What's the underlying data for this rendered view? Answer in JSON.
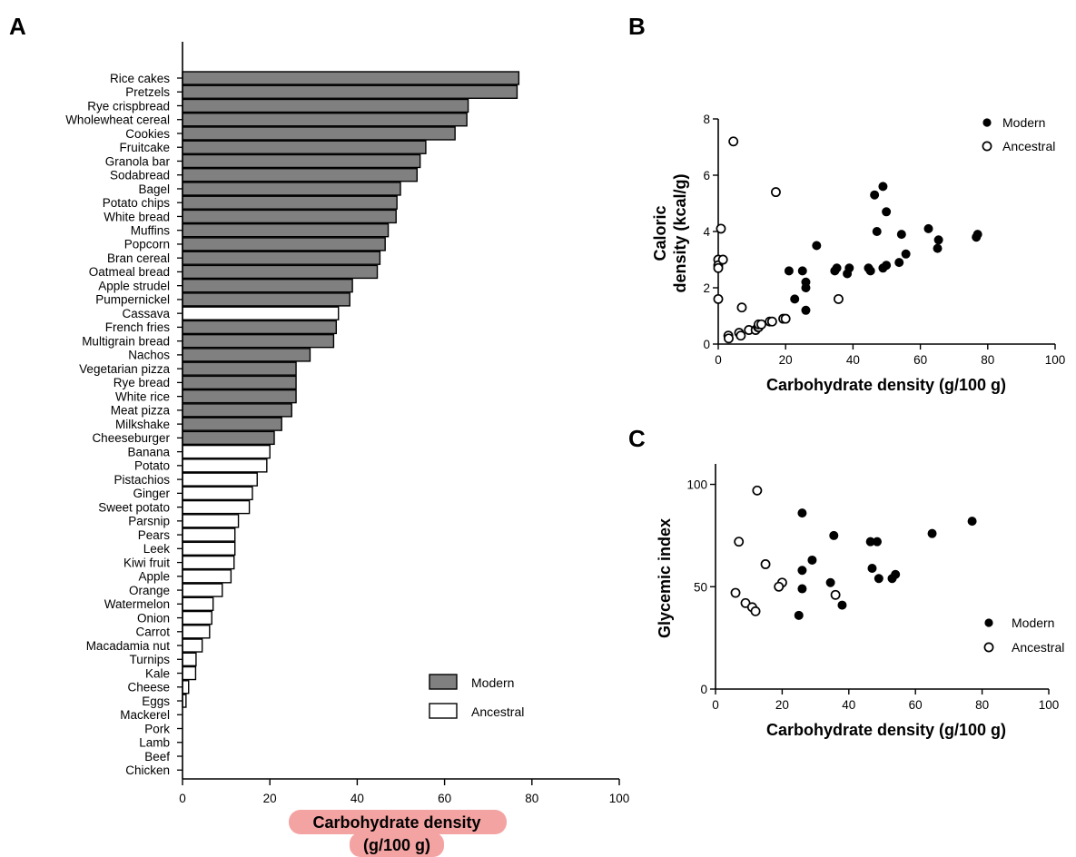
{
  "colors": {
    "modern": "#808080",
    "ancestral": "#ffffff",
    "highlight": "#f4a3a3",
    "stroke": "#000000"
  },
  "panels": {
    "a": "A",
    "b": "B",
    "c": "C"
  },
  "chart_data": [
    {
      "panel": "A",
      "type": "bar",
      "orientation": "horizontal",
      "xlabel_line1": "Carbohydrate density",
      "xlabel_line2": "(g/100 g)",
      "xlim": [
        0,
        100
      ],
      "xticks": [
        "0",
        "20",
        "40",
        "60",
        "80",
        "100"
      ],
      "legend": [
        {
          "name": "Modern",
          "group": "modern"
        },
        {
          "name": "Ancestral",
          "group": "ancestral"
        }
      ],
      "legend_position": "bottom-right",
      "bars": [
        {
          "label": "Rice cakes",
          "value": 77,
          "group": "modern"
        },
        {
          "label": "Pretzels",
          "value": 76.6,
          "group": "modern"
        },
        {
          "label": "Rye crispbread",
          "value": 65.4,
          "group": "modern"
        },
        {
          "label": "Wholewheat cereal",
          "value": 65.1,
          "group": "modern"
        },
        {
          "label": "Cookies",
          "value": 62.4,
          "group": "modern"
        },
        {
          "label": "Fruitcake",
          "value": 55.7,
          "group": "modern"
        },
        {
          "label": "Granola bar",
          "value": 54.4,
          "group": "modern"
        },
        {
          "label": "Sodabread",
          "value": 53.7,
          "group": "modern"
        },
        {
          "label": "Bagel",
          "value": 49.9,
          "group": "modern"
        },
        {
          "label": "Potato chips",
          "value": 49.1,
          "group": "modern"
        },
        {
          "label": "White bread",
          "value": 48.9,
          "group": "modern"
        },
        {
          "label": "Muffins",
          "value": 47.1,
          "group": "modern"
        },
        {
          "label": "Popcorn",
          "value": 46.4,
          "group": "modern"
        },
        {
          "label": "Bran cereal",
          "value": 45.2,
          "group": "modern"
        },
        {
          "label": "Oatmeal bread",
          "value": 44.6,
          "group": "modern"
        },
        {
          "label": "Apple strudel",
          "value": 38.9,
          "group": "modern"
        },
        {
          "label": "Pumpernickel",
          "value": 38.3,
          "group": "modern"
        },
        {
          "label": "Cassava",
          "value": 35.7,
          "group": "ancestral"
        },
        {
          "label": "French fries",
          "value": 35.2,
          "group": "modern"
        },
        {
          "label": "Multigrain bread",
          "value": 34.6,
          "group": "modern"
        },
        {
          "label": "Nachos",
          "value": 29.2,
          "group": "modern"
        },
        {
          "label": "Vegetarian pizza",
          "value": 26,
          "group": "modern"
        },
        {
          "label": "Rye bread",
          "value": 26,
          "group": "modern"
        },
        {
          "label": "White rice",
          "value": 26,
          "group": "modern"
        },
        {
          "label": "Meat pizza",
          "value": 25,
          "group": "modern"
        },
        {
          "label": "Milkshake",
          "value": 22.7,
          "group": "modern"
        },
        {
          "label": "Cheeseburger",
          "value": 21,
          "group": "modern"
        },
        {
          "label": "Banana",
          "value": 20,
          "group": "ancestral"
        },
        {
          "label": "Potato",
          "value": 19.3,
          "group": "ancestral"
        },
        {
          "label": "Pistachios",
          "value": 17.1,
          "group": "ancestral"
        },
        {
          "label": "Ginger",
          "value": 16,
          "group": "ancestral"
        },
        {
          "label": "Sweet potato",
          "value": 15.3,
          "group": "ancestral"
        },
        {
          "label": "Parsnip",
          "value": 12.8,
          "group": "ancestral"
        },
        {
          "label": "Pears",
          "value": 12,
          "group": "ancestral"
        },
        {
          "label": "Leek",
          "value": 12,
          "group": "ancestral"
        },
        {
          "label": "Kiwi fruit",
          "value": 11.8,
          "group": "ancestral"
        },
        {
          "label": "Apple",
          "value": 11.1,
          "group": "ancestral"
        },
        {
          "label": "Orange",
          "value": 9.1,
          "group": "ancestral"
        },
        {
          "label": "Watermelon",
          "value": 7,
          "group": "ancestral"
        },
        {
          "label": "Onion",
          "value": 6.7,
          "group": "ancestral"
        },
        {
          "label": "Carrot",
          "value": 6.2,
          "group": "ancestral"
        },
        {
          "label": "Macadamia nut",
          "value": 4.5,
          "group": "ancestral"
        },
        {
          "label": "Turnips",
          "value": 3.1,
          "group": "ancestral"
        },
        {
          "label": "Kale",
          "value": 3,
          "group": "ancestral"
        },
        {
          "label": "Cheese",
          "value": 1.4,
          "group": "ancestral"
        },
        {
          "label": "Eggs",
          "value": 0.8,
          "group": "ancestral"
        },
        {
          "label": "Mackerel",
          "value": 0,
          "group": "ancestral"
        },
        {
          "label": "Pork",
          "value": 0,
          "group": "ancestral"
        },
        {
          "label": "Lamb",
          "value": 0,
          "group": "ancestral"
        },
        {
          "label": "Beef",
          "value": 0,
          "group": "ancestral"
        },
        {
          "label": "Chicken",
          "value": 0,
          "group": "ancestral"
        }
      ]
    },
    {
      "panel": "B",
      "type": "scatter",
      "xlabel": "Carbohydrate density (g/100 g)",
      "ylabel_line1": "Caloric",
      "ylabel_line2": "density (kcal/g)",
      "xlim": [
        0,
        100
      ],
      "ylim": [
        0,
        8
      ],
      "xticks": [
        "0",
        "20",
        "40",
        "60",
        "80",
        "100"
      ],
      "yticks": [
        "0",
        "2",
        "4",
        "6",
        "8"
      ],
      "legend_position": "top-right",
      "series": [
        {
          "name": "Modern",
          "filled": true,
          "points": [
            [
              77,
              3.9
            ],
            [
              76.6,
              3.8
            ],
            [
              65.4,
              3.7
            ],
            [
              65.1,
              3.4
            ],
            [
              62.4,
              4.1
            ],
            [
              55.7,
              3.2
            ],
            [
              54.4,
              3.9
            ],
            [
              53.7,
              2.9
            ],
            [
              49.9,
              2.8
            ],
            [
              49.9,
              4.7
            ],
            [
              48.9,
              2.7
            ],
            [
              48.9,
              5.6
            ],
            [
              47.1,
              4.0
            ],
            [
              46.4,
              5.3
            ],
            [
              45.2,
              2.6
            ],
            [
              44.6,
              2.7
            ],
            [
              38.9,
              2.7
            ],
            [
              38.3,
              2.5
            ],
            [
              35.2,
              2.7
            ],
            [
              34.6,
              2.6
            ],
            [
              29.2,
              3.5
            ],
            [
              26,
              2.0
            ],
            [
              26,
              2.2
            ],
            [
              26,
              1.2
            ],
            [
              25,
              2.6
            ],
            [
              22.7,
              1.6
            ],
            [
              21,
              2.6
            ]
          ]
        },
        {
          "name": "Ancestral",
          "filled": false,
          "points": [
            [
              0,
              3.0
            ],
            [
              0,
              2.8
            ],
            [
              0,
              2.7
            ],
            [
              0,
              1.6
            ],
            [
              0.8,
              4.1
            ],
            [
              1.4,
              3.0
            ],
            [
              3,
              0.3
            ],
            [
              3.1,
              0.2
            ],
            [
              4.5,
              7.2
            ],
            [
              6.2,
              0.4
            ],
            [
              6.7,
              0.3
            ],
            [
              7,
              1.3
            ],
            [
              9.1,
              0.5
            ],
            [
              11.1,
              0.5
            ],
            [
              11.8,
              0.6
            ],
            [
              12,
              0.6
            ],
            [
              12,
              0.7
            ],
            [
              12.8,
              0.7
            ],
            [
              15.3,
              0.8
            ],
            [
              16,
              0.8
            ],
            [
              17.1,
              5.4
            ],
            [
              19.3,
              0.9
            ],
            [
              20,
              0.9
            ],
            [
              35.7,
              1.6
            ]
          ]
        }
      ]
    },
    {
      "panel": "C",
      "type": "scatter",
      "xlabel": "Carbohydrate density (g/100 g)",
      "ylabel": "Glycemic index",
      "xlim": [
        0,
        100
      ],
      "ylim": [
        0,
        110
      ],
      "xticks": [
        "0",
        "20",
        "40",
        "60",
        "80",
        "100"
      ],
      "yticks": [
        "0",
        "50",
        "100"
      ],
      "legend_position": "bottom-right",
      "series": [
        {
          "name": "Modern",
          "filled": true,
          "points": [
            [
              77,
              82
            ],
            [
              65,
              76
            ],
            [
              54,
              56
            ],
            [
              53,
              54
            ],
            [
              49,
              54
            ],
            [
              48.5,
              72
            ],
            [
              47,
              59
            ],
            [
              46.5,
              72
            ],
            [
              38,
              41
            ],
            [
              35.5,
              75
            ],
            [
              34.5,
              52
            ],
            [
              29,
              63
            ],
            [
              26,
              86
            ],
            [
              26,
              58
            ],
            [
              26,
              49
            ],
            [
              25,
              36
            ]
          ]
        },
        {
          "name": "Ancestral",
          "filled": false,
          "points": [
            [
              12.5,
              97
            ],
            [
              7,
              72
            ],
            [
              15,
              61
            ],
            [
              20,
              52
            ],
            [
              19,
              50
            ],
            [
              6,
              47
            ],
            [
              36,
              46
            ],
            [
              9,
              42
            ],
            [
              11,
              40
            ],
            [
              12,
              38
            ]
          ]
        }
      ]
    }
  ]
}
